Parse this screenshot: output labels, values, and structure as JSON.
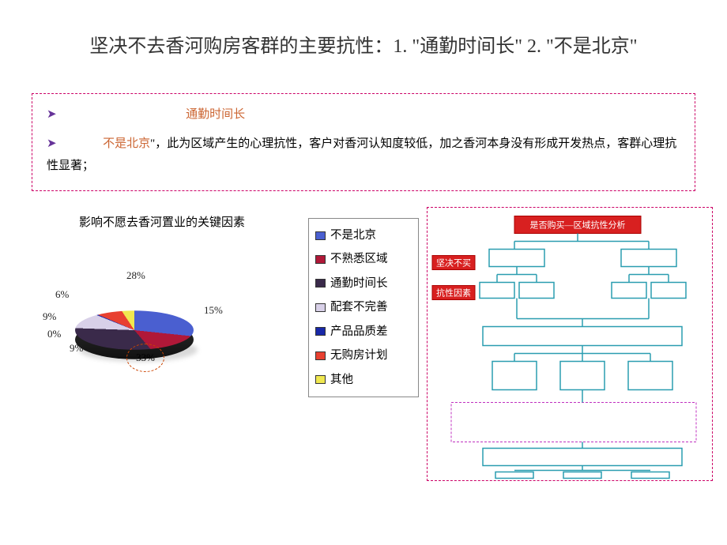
{
  "title": "坚决不去香河购房客群的主要抗性：1. \"通勤时间长\" 2.  \"不是北京\"",
  "callout": {
    "line1": {
      "bullet": "➤",
      "hl": "通勤时间长"
    },
    "line2": {
      "bullet": "➤",
      "hl": "不是北京",
      "rest": "\"，此为区域产生的心理抗性，客户对香河认知度较低，加之香河本身没有形成开发热点，客群心理抗性显著；"
    }
  },
  "chart": {
    "title": "影响不愿去香河置业的关键因素",
    "type": "pie",
    "slices": [
      {
        "label": "不是北京",
        "value": 28,
        "color": "#4a5fd0"
      },
      {
        "label": "不熟悉区域",
        "value": 15,
        "color": "#b01838"
      },
      {
        "label": "通勤时间长",
        "value": 33,
        "color": "#3a2a4a"
      },
      {
        "label": "配套不完善",
        "value": 9,
        "color": "#d8d0e8"
      },
      {
        "label": "产品品质差",
        "value": 0,
        "color": "#1828a8"
      },
      {
        "label": "无购房计划",
        "value": 9,
        "color": "#e84030"
      },
      {
        "label": "其他",
        "value": 6,
        "color": "#f0e850"
      }
    ],
    "labels": {
      "p28": "28%",
      "p15": "15%",
      "p33": "33%",
      "p9a": "9%",
      "p0": "0%",
      "p9b": "9%",
      "p6": "6%"
    },
    "legend_items": [
      "不是北京",
      "不熟悉区域",
      "通勤时间长",
      "配套不完善",
      "产品品质差",
      "无购房计划",
      "其他"
    ],
    "swatch_colors": [
      "#4a5fd0",
      "#b01838",
      "#3a2a4a",
      "#d8d0e8",
      "#1828a8",
      "#e84030",
      "#f0e850"
    ],
    "background": "#ffffff",
    "callout_color": "#cc4400"
  },
  "flow": {
    "header": "是否购买—区域抗性分析",
    "side_labels": [
      "坚决不买",
      "抗性因素"
    ],
    "node_stroke": "#2a9db0",
    "header_fill": "#d82020",
    "side_fill": "#d82020",
    "dash_stroke": "#c030c0"
  },
  "border_color": "#cc0066"
}
